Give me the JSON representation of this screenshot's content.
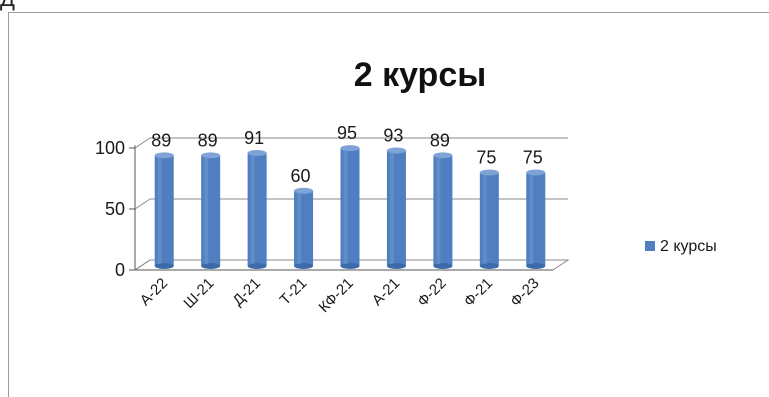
{
  "top_fragment": "Д",
  "chart_data": {
    "type": "bar",
    "title": "2 курсы",
    "categories": [
      "А-22",
      "Ш-21",
      "Д-21",
      "Т-21",
      "КФ-21",
      "А-21",
      "Ф-22",
      "Ф-21",
      "Ф-23"
    ],
    "series": [
      {
        "name": "2 курсы",
        "values": [
          89,
          89,
          91,
          60,
          95,
          93,
          89,
          75,
          75
        ],
        "color": "#4f7fc0"
      }
    ],
    "yticks": [
      0,
      50,
      100
    ],
    "ylim": [
      0,
      110
    ],
    "grid": true,
    "legend_position": "right",
    "data_labels": true
  }
}
